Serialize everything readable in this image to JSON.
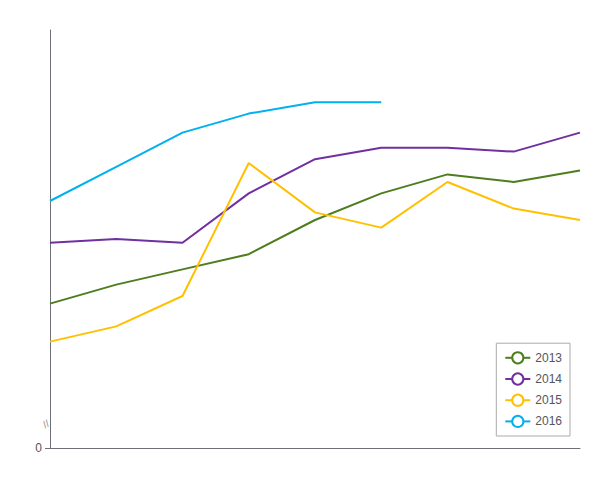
{
  "chart_data": {
    "type": "line",
    "x": [
      1,
      2,
      3,
      4,
      5,
      6,
      7,
      8,
      9
    ],
    "series": [
      {
        "name": "2013",
        "color": "#4e7d1e",
        "values": [
          38,
          43,
          47,
          51,
          60,
          67,
          72,
          70,
          73
        ]
      },
      {
        "name": "2014",
        "color": "#7030a0",
        "values": [
          54,
          55,
          54,
          67,
          76,
          79,
          79,
          78,
          83
        ]
      },
      {
        "name": "2015",
        "color": "#ffc000",
        "values": [
          28,
          32,
          40,
          75,
          62,
          58,
          70,
          63,
          60
        ]
      },
      {
        "name": "2016",
        "color": "#00b0f0",
        "values": [
          65,
          74,
          83,
          88,
          91,
          91,
          null,
          null,
          null
        ]
      }
    ],
    "xlim": [
      1,
      9
    ],
    "xticks": [],
    "ylim": [
      0,
      110
    ],
    "yticks": [
      0
    ],
    "tick_labels": "y",
    "grid": false,
    "legend": "lower right",
    "annotations": [
      "//"
    ]
  }
}
